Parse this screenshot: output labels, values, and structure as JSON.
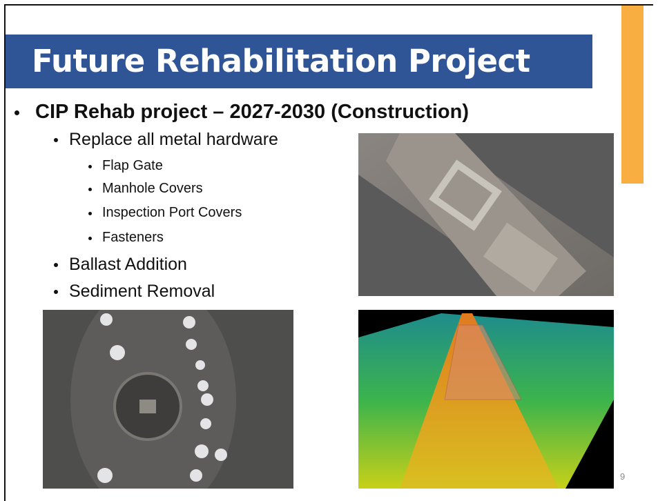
{
  "slide": {
    "title": "Future Rehabilitation Project",
    "bullets": [
      {
        "level": 1,
        "text": "CIP Rehab project – 2027-2030 (Construction)"
      },
      {
        "level": 2,
        "text": "Replace all metal hardware"
      },
      {
        "level": 3,
        "text": "Flap Gate"
      },
      {
        "level": 3,
        "text": "Manhole Covers"
      },
      {
        "level": 3,
        "text": "Inspection Port Covers"
      },
      {
        "level": 3,
        "text": "Fasteners"
      },
      {
        "level": 2,
        "text": "Ballast Addition"
      },
      {
        "level": 2,
        "text": "Sediment Removal"
      }
    ],
    "page_number": "9"
  }
}
